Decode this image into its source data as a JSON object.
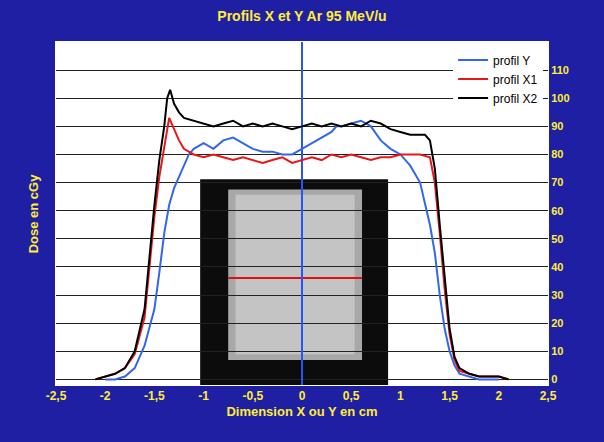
{
  "chart_data": {
    "type": "line",
    "title": "Profils X et Y Ar 95 MeV/u",
    "x_label": "Dimension X ou Y en cm",
    "y_label": "Dose en cGy",
    "xlim": [
      -2.5,
      2.5
    ],
    "xticks": [
      {
        "value": -2.5,
        "label": "-2,5"
      },
      -2,
      {
        "value": -1.5,
        "label": "-1,5"
      },
      -1,
      {
        "value": -0.5,
        "label": "-0,5"
      },
      0,
      {
        "value": 0.5,
        "label": "0,5"
      },
      1,
      {
        "value": 1.5,
        "label": "1,5"
      },
      2,
      {
        "value": 2.5,
        "label": "2,5"
      }
    ],
    "ylim": [
      -2,
      120
    ],
    "yticks": [
      0,
      10,
      20,
      30,
      40,
      50,
      60,
      70,
      80,
      90,
      100,
      110
    ],
    "grid": true,
    "legend": "upper right",
    "series": [
      {
        "name": "profil Y",
        "color": "#3366ee",
        "x": [
          -2.0,
          -1.9,
          -1.8,
          -1.7,
          -1.6,
          -1.5,
          -1.45,
          -1.4,
          -1.35,
          -1.3,
          -1.25,
          -1.2,
          -1.15,
          -1.1,
          -1.0,
          -0.9,
          -0.8,
          -0.7,
          -0.6,
          -0.5,
          -0.4,
          -0.3,
          -0.2,
          -0.1,
          0.0,
          0.1,
          0.2,
          0.3,
          0.35,
          0.4,
          0.5,
          0.6,
          0.7,
          0.8,
          0.9,
          1.0,
          1.1,
          1.2,
          1.3,
          1.35,
          1.4,
          1.45,
          1.5,
          1.55,
          1.6,
          1.7,
          1.8,
          1.9,
          2.0
        ],
        "values": [
          0,
          0,
          1,
          4,
          12,
          25,
          38,
          52,
          62,
          68,
          72,
          76,
          80,
          82,
          84,
          82,
          85,
          86,
          84,
          82,
          81,
          81,
          80,
          80,
          82,
          84,
          86,
          88,
          90,
          90,
          91,
          92,
          90,
          85,
          82,
          80,
          76,
          70,
          55,
          45,
          30,
          18,
          10,
          5,
          2,
          1,
          0,
          0,
          0
        ]
      },
      {
        "name": "profil X1",
        "color": "#e8161b",
        "x": [
          -2.1,
          -2.0,
          -1.9,
          -1.8,
          -1.7,
          -1.6,
          -1.55,
          -1.5,
          -1.45,
          -1.4,
          -1.35,
          -1.3,
          -1.25,
          -1.2,
          -1.1,
          -1.0,
          -0.9,
          -0.8,
          -0.7,
          -0.6,
          -0.5,
          -0.4,
          -0.3,
          -0.2,
          -0.1,
          0.0,
          0.1,
          0.2,
          0.3,
          0.4,
          0.5,
          0.6,
          0.7,
          0.8,
          0.9,
          1.0,
          1.1,
          1.2,
          1.3,
          1.35,
          1.4,
          1.45,
          1.5,
          1.55,
          1.6,
          1.7,
          1.8,
          1.9,
          2.0,
          2.1
        ],
        "values": [
          0,
          1,
          2,
          4,
          9,
          22,
          40,
          58,
          72,
          83,
          93,
          89,
          85,
          82,
          80,
          79,
          80,
          79,
          78,
          79,
          78,
          77,
          78,
          79,
          77,
          78,
          79,
          78,
          80,
          79,
          80,
          79,
          78,
          79,
          79,
          80,
          80,
          80,
          79,
          70,
          52,
          32,
          16,
          7,
          3,
          2,
          1,
          1,
          1,
          0
        ]
      },
      {
        "name": "profil X2",
        "color": "#000000",
        "x": [
          -2.1,
          -2.0,
          -1.9,
          -1.8,
          -1.7,
          -1.6,
          -1.55,
          -1.5,
          -1.45,
          -1.4,
          -1.37,
          -1.34,
          -1.3,
          -1.25,
          -1.2,
          -1.1,
          -1.0,
          -0.9,
          -0.8,
          -0.7,
          -0.6,
          -0.5,
          -0.4,
          -0.3,
          -0.2,
          -0.1,
          0.0,
          0.1,
          0.2,
          0.3,
          0.4,
          0.5,
          0.6,
          0.7,
          0.8,
          0.9,
          1.0,
          1.1,
          1.2,
          1.25,
          1.3,
          1.35,
          1.4,
          1.45,
          1.5,
          1.55,
          1.6,
          1.7,
          1.8,
          1.9,
          2.0,
          2.1
        ],
        "values": [
          0,
          1,
          2,
          4,
          10,
          25,
          45,
          62,
          78,
          90,
          100,
          103,
          98,
          95,
          93,
          92,
          91,
          90,
          91,
          92,
          90,
          91,
          90,
          91,
          90,
          89,
          90,
          91,
          90,
          91,
          90,
          91,
          90,
          92,
          91,
          89,
          88,
          87,
          87,
          87,
          85,
          75,
          55,
          35,
          18,
          8,
          4,
          2,
          1,
          1,
          1,
          0
        ]
      }
    ]
  }
}
